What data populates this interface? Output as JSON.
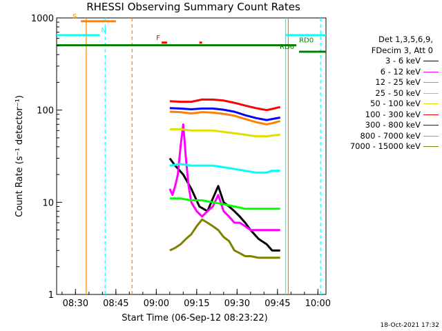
{
  "chart_data": {
    "type": "line",
    "title": "RHESSI Observing Summary Count Rates",
    "xlabel": "Start Time (06-Sep-12 08:23:22)",
    "ylabel": "Count Rate (s⁻¹ detector⁻¹)",
    "y_scale": "log",
    "ylim": [
      1,
      1000
    ],
    "xlim_minutes": [
      0,
      100
    ],
    "x_ticks": [
      {
        "t": 7,
        "label": "08:30"
      },
      {
        "t": 22,
        "label": "08:45"
      },
      {
        "t": 37,
        "label": "09:00"
      },
      {
        "t": 52,
        "label": "09:15"
      },
      {
        "t": 67,
        "label": "09:30"
      },
      {
        "t": 82,
        "label": "09:45"
      },
      {
        "t": 97,
        "label": "10:00"
      }
    ],
    "y_ticks": [
      {
        "v": 1,
        "label": "1"
      },
      {
        "v": 10,
        "label": "10"
      },
      {
        "v": 100,
        "label": "100"
      },
      {
        "v": 1000,
        "label": "1000"
      }
    ],
    "legend_header": [
      "Det 1,3,5,6,9,",
      "FDecim 3, Att 0"
    ],
    "series": [
      {
        "name": "3 - 6 keV",
        "color": "#000000",
        "t": [
          42,
          44,
          47,
          50,
          53,
          56,
          58,
          60,
          62,
          64,
          66,
          68,
          70,
          72,
          75,
          78,
          80,
          83
        ],
        "values": [
          30,
          25,
          20,
          14,
          9,
          8,
          11,
          15,
          10,
          9,
          8,
          7,
          6,
          5,
          4,
          3.5,
          3,
          3
        ]
      },
      {
        "name": "6 - 12 keV",
        "color": "#ff00ff",
        "t": [
          42,
          43,
          44,
          45,
          46,
          47,
          48,
          49,
          50,
          52,
          54,
          56,
          58,
          60,
          62,
          64,
          66,
          68,
          70,
          72,
          75,
          78,
          80,
          83
        ],
        "values": [
          14,
          12,
          15,
          20,
          40,
          70,
          30,
          15,
          10,
          8,
          7,
          8,
          9,
          12,
          8,
          7,
          6,
          6,
          5.5,
          5,
          5,
          5,
          5,
          5
        ]
      },
      {
        "name": "12 - 25 keV",
        "color": "#00ff00",
        "t": [
          42,
          46,
          50,
          54,
          58,
          62,
          66,
          70,
          74,
          78,
          80,
          83
        ],
        "values": [
          11,
          11,
          10.5,
          10.5,
          10,
          9.5,
          9,
          8.5,
          8.5,
          8.5,
          8.5,
          8.5
        ]
      },
      {
        "name": "25 - 50 keV",
        "color": "#00ffff",
        "t": [
          42,
          46,
          50,
          54,
          58,
          62,
          66,
          70,
          74,
          78,
          80,
          83
        ],
        "values": [
          25,
          26,
          25,
          25,
          25,
          24,
          23,
          22,
          21,
          21,
          22,
          22
        ]
      },
      {
        "name": "50 - 100 keV",
        "color": "#e0e000",
        "t": [
          42,
          46,
          50,
          54,
          58,
          62,
          66,
          70,
          74,
          78,
          80,
          83
        ],
        "values": [
          62,
          62,
          60,
          60,
          60,
          58,
          56,
          54,
          52,
          52,
          53,
          54
        ]
      },
      {
        "name": "100 - 300 keV",
        "color": "#ff0000",
        "t": [
          42,
          46,
          50,
          54,
          58,
          62,
          66,
          70,
          74,
          78,
          80,
          83
        ],
        "values": [
          125,
          123,
          123,
          130,
          130,
          127,
          120,
          112,
          105,
          100,
          103,
          108
        ]
      },
      {
        "name": "300 - 800 keV",
        "color": "#0000ff",
        "t": [
          42,
          46,
          50,
          54,
          58,
          62,
          66,
          70,
          74,
          78,
          80,
          83
        ],
        "values": [
          105,
          104,
          102,
          104,
          104,
          101,
          96,
          88,
          82,
          78,
          80,
          83
        ]
      },
      {
        "name": "800 - 7000 keV",
        "color": "#ff8000",
        "t": [
          42,
          46,
          50,
          54,
          58,
          62,
          66,
          70,
          74,
          78,
          80,
          83
        ],
        "values": [
          96,
          95,
          92,
          95,
          94,
          91,
          87,
          80,
          74,
          70,
          72,
          76
        ]
      },
      {
        "name": "7000 - 15000 keV",
        "color": "#808000",
        "t": [
          42,
          44,
          46,
          48,
          50,
          52,
          54,
          56,
          58,
          60,
          62,
          64,
          66,
          68,
          70,
          72,
          75,
          78,
          80,
          83
        ],
        "values": [
          3,
          3.2,
          3.5,
          4,
          4.5,
          5.5,
          6.5,
          6,
          5.5,
          5,
          4.2,
          3.8,
          3,
          2.8,
          2.6,
          2.6,
          2.5,
          2.5,
          2.5,
          2.5
        ]
      }
    ],
    "flag_annotations": [
      {
        "label": "S",
        "color": "#ff8000",
        "value": 920,
        "t_start": 9,
        "t_end": 22
      },
      {
        "label": "N",
        "color": "#00ffff",
        "value": 650,
        "t_start": 0,
        "t_end": 16
      },
      {
        "label": "N",
        "color": "#00ffff",
        "value": 650,
        "t_start": 85,
        "t_end": 100
      },
      {
        "label": "F",
        "color": "#ff0000",
        "value": 540,
        "t_start": 39,
        "t_end": 41
      },
      {
        "label": "F",
        "color": "#ff0000",
        "value": 540,
        "t_start": 53,
        "t_end": 54
      },
      {
        "label": "RD0",
        "color": "#008000",
        "value": 505,
        "t_start": 0,
        "t_end": 89
      },
      {
        "label": "RD6",
        "color": "#008000",
        "value": 430,
        "t_start": 90,
        "t_end": 100
      }
    ],
    "vertical_markers": [
      {
        "t": 11,
        "color": "#ff8000",
        "style": "solid"
      },
      {
        "t": 18,
        "color": "#00ffff",
        "style": "dashed"
      },
      {
        "t": 28,
        "color": "#ff8000",
        "style": "dashed"
      },
      {
        "t": 85,
        "color": "#00ffff",
        "style": "solid"
      },
      {
        "t": 86,
        "color": "#ff8000",
        "style": "solid"
      },
      {
        "t": 98,
        "color": "#00ffff",
        "style": "dashed"
      }
    ],
    "timestamp": "18-Oct-2021 17:32"
  }
}
